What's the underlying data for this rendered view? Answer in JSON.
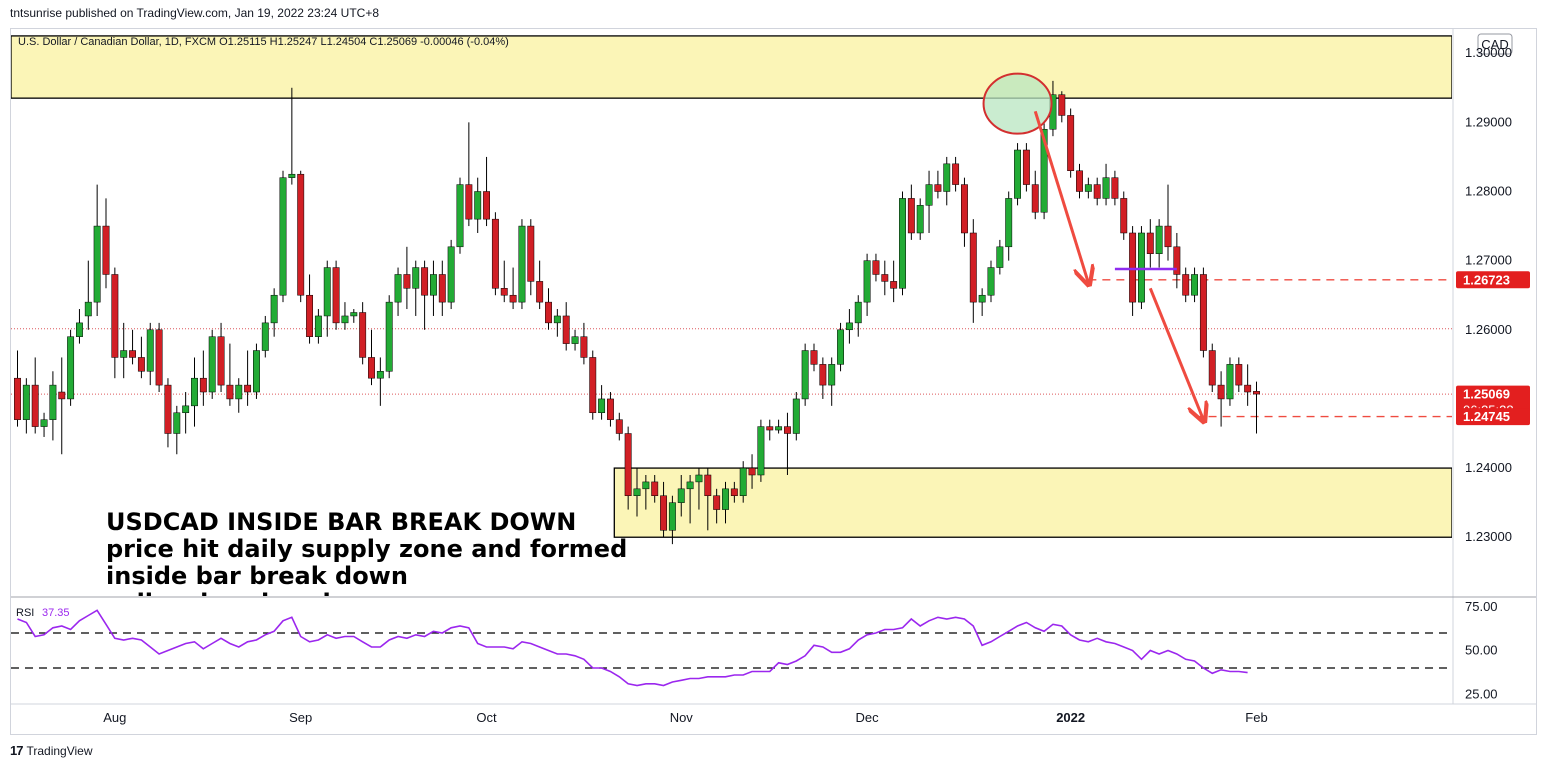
{
  "header": {
    "published_by": "tntsunrise published on TradingView.com, Jan 19, 2022 23:24 UTC+8"
  },
  "footer": {
    "brand": "TradingView",
    "logo_glyph": "17"
  },
  "colors": {
    "up": "#22ab35",
    "down": "#d11f25",
    "zone": "#fbf5b7",
    "arrow": "#ef4b40",
    "rsi": "#9b27ee",
    "price_tag": "#e31f1f",
    "circle_fill": "#b8e6c0",
    "circle_stroke": "#d32f2f",
    "inside_bar_line": "#8f2cf0"
  },
  "chart_data": [
    {
      "type": "candlestick",
      "symbol_line": "U.S. Dollar / Canadian Dollar, 1D, FXCM  O1.25115  H1.25247  L1.24504  C1.25069  -0.00046 (-0.04%)",
      "currency": "CAD",
      "y_ticks": [
        "1.30000",
        "1.29000",
        "1.28000",
        "1.27000",
        "1.26000",
        "1.25000",
        "1.24000",
        "1.23000"
      ],
      "y_tick_values": [
        1.3,
        1.29,
        1.28,
        1.27,
        1.26,
        1.25,
        1.24,
        1.23
      ],
      "ylim": [
        1.2215,
        1.3035
      ],
      "x_ticks": [
        {
          "label": "Aug",
          "bar": 11,
          "bold": false
        },
        {
          "label": "Sep",
          "bar": 32,
          "bold": false
        },
        {
          "label": "Oct",
          "bar": 53,
          "bold": false
        },
        {
          "label": "Nov",
          "bar": 75,
          "bold": false
        },
        {
          "label": "Dec",
          "bar": 96,
          "bold": false
        },
        {
          "label": "2022",
          "bar": 119,
          "bold": true
        },
        {
          "label": "Feb",
          "bar": 140,
          "bold": false
        }
      ],
      "price_labels": [
        {
          "value": 1.26723,
          "text": "1.26723"
        },
        {
          "value": 1.25069,
          "text": "1.25069",
          "countdown": "06:35:28"
        },
        {
          "value": 1.24745,
          "text": "1.24745"
        }
      ],
      "zones": [
        {
          "top": 1.3025,
          "bottom": 1.2935
        },
        {
          "top": 1.24,
          "bottom": 1.23
        }
      ],
      "dashed_levels": [
        1.26723,
        1.24745
      ],
      "dotted_levels": [
        1.26015,
        1.25069
      ],
      "inside_bar_line": {
        "bar_start": 124,
        "bar_end": 131,
        "value": 1.2688
      },
      "circle": {
        "bar": 113,
        "value": 1.2927
      },
      "arrows": [
        {
          "from_bar": 115,
          "from_value": 1.2916,
          "to_bar": 121,
          "to_value": 1.2668
        },
        {
          "from_bar": 128,
          "from_value": 1.266,
          "to_bar": 134,
          "to_value": 1.247
        }
      ],
      "annotation_lines": [
        "USDCAD INSIDE BAR BREAK DOWN",
        "price hit daily supply zone and formed",
        "inside bar break down",
        "sell a clear break"
      ],
      "candles": [
        [
          1.253,
          1.257,
          1.246,
          1.247
        ],
        [
          1.247,
          1.253,
          1.245,
          1.252
        ],
        [
          1.252,
          1.256,
          1.245,
          1.246
        ],
        [
          1.246,
          1.248,
          1.2445,
          1.247
        ],
        [
          1.247,
          1.254,
          1.244,
          1.252
        ],
        [
          1.251,
          1.256,
          1.242,
          1.25
        ],
        [
          1.25,
          1.26,
          1.249,
          1.259
        ],
        [
          1.259,
          1.263,
          1.258,
          1.261
        ],
        [
          1.262,
          1.27,
          1.26,
          1.264
        ],
        [
          1.264,
          1.281,
          1.262,
          1.275
        ],
        [
          1.275,
          1.279,
          1.266,
          1.268
        ],
        [
          1.268,
          1.269,
          1.253,
          1.256
        ],
        [
          1.256,
          1.261,
          1.253,
          1.257
        ],
        [
          1.257,
          1.26,
          1.255,
          1.256
        ],
        [
          1.256,
          1.259,
          1.253,
          1.254
        ],
        [
          1.254,
          1.261,
          1.252,
          1.26
        ],
        [
          1.26,
          1.261,
          1.251,
          1.252
        ],
        [
          1.252,
          1.253,
          1.243,
          1.245
        ],
        [
          1.245,
          1.249,
          1.242,
          1.248
        ],
        [
          1.248,
          1.251,
          1.245,
          1.249
        ],
        [
          1.249,
          1.256,
          1.246,
          1.253
        ],
        [
          1.253,
          1.257,
          1.249,
          1.251
        ],
        [
          1.251,
          1.26,
          1.25,
          1.259
        ],
        [
          1.259,
          1.261,
          1.251,
          1.252
        ],
        [
          1.252,
          1.258,
          1.249,
          1.25
        ],
        [
          1.25,
          1.253,
          1.248,
          1.252
        ],
        [
          1.252,
          1.257,
          1.249,
          1.251
        ],
        [
          1.251,
          1.258,
          1.25,
          1.257
        ],
        [
          1.257,
          1.262,
          1.256,
          1.261
        ],
        [
          1.261,
          1.266,
          1.259,
          1.265
        ],
        [
          1.265,
          1.283,
          1.264,
          1.282
        ],
        [
          1.282,
          1.295,
          1.281,
          1.2825
        ],
        [
          1.2825,
          1.283,
          1.264,
          1.265
        ],
        [
          1.265,
          1.268,
          1.258,
          1.259
        ],
        [
          1.259,
          1.263,
          1.258,
          1.262
        ],
        [
          1.262,
          1.27,
          1.259,
          1.269
        ],
        [
          1.269,
          1.27,
          1.26,
          1.261
        ],
        [
          1.261,
          1.264,
          1.26,
          1.262
        ],
        [
          1.262,
          1.263,
          1.261,
          1.2625
        ],
        [
          1.2625,
          1.264,
          1.255,
          1.256
        ],
        [
          1.256,
          1.26,
          1.252,
          1.253
        ],
        [
          1.253,
          1.256,
          1.249,
          1.254
        ],
        [
          1.254,
          1.265,
          1.253,
          1.264
        ],
        [
          1.264,
          1.269,
          1.262,
          1.268
        ],
        [
          1.268,
          1.272,
          1.263,
          1.266
        ],
        [
          1.266,
          1.27,
          1.262,
          1.269
        ],
        [
          1.269,
          1.27,
          1.26,
          1.265
        ],
        [
          1.265,
          1.27,
          1.262,
          1.268
        ],
        [
          1.268,
          1.27,
          1.262,
          1.264
        ],
        [
          1.264,
          1.273,
          1.263,
          1.272
        ],
        [
          1.272,
          1.282,
          1.271,
          1.281
        ],
        [
          1.281,
          1.29,
          1.275,
          1.276
        ],
        [
          1.276,
          1.282,
          1.274,
          1.28
        ],
        [
          1.28,
          1.285,
          1.275,
          1.276
        ],
        [
          1.276,
          1.277,
          1.265,
          1.266
        ],
        [
          1.266,
          1.27,
          1.264,
          1.265
        ],
        [
          1.265,
          1.269,
          1.263,
          1.264
        ],
        [
          1.264,
          1.276,
          1.263,
          1.275
        ],
        [
          1.275,
          1.276,
          1.265,
          1.267
        ],
        [
          1.267,
          1.27,
          1.263,
          1.264
        ],
        [
          1.264,
          1.266,
          1.26,
          1.261
        ],
        [
          1.261,
          1.263,
          1.259,
          1.262
        ],
        [
          1.262,
          1.264,
          1.257,
          1.258
        ],
        [
          1.258,
          1.26,
          1.257,
          1.259
        ],
        [
          1.259,
          1.261,
          1.255,
          1.256
        ],
        [
          1.256,
          1.257,
          1.247,
          1.248
        ],
        [
          1.248,
          1.252,
          1.247,
          1.25
        ],
        [
          1.25,
          1.251,
          1.246,
          1.247
        ],
        [
          1.247,
          1.248,
          1.244,
          1.245
        ],
        [
          1.245,
          1.246,
          1.234,
          1.236
        ],
        [
          1.236,
          1.24,
          1.233,
          1.237
        ],
        [
          1.237,
          1.239,
          1.234,
          1.238
        ],
        [
          1.238,
          1.239,
          1.235,
          1.236
        ],
        [
          1.236,
          1.238,
          1.23,
          1.231
        ],
        [
          1.231,
          1.236,
          1.229,
          1.235
        ],
        [
          1.235,
          1.239,
          1.233,
          1.237
        ],
        [
          1.237,
          1.239,
          1.232,
          1.238
        ],
        [
          1.238,
          1.24,
          1.234,
          1.239
        ],
        [
          1.239,
          1.24,
          1.231,
          1.236
        ],
        [
          1.236,
          1.237,
          1.232,
          1.234
        ],
        [
          1.234,
          1.238,
          1.232,
          1.237
        ],
        [
          1.237,
          1.238,
          1.235,
          1.236
        ],
        [
          1.236,
          1.241,
          1.235,
          1.24
        ],
        [
          1.24,
          1.242,
          1.237,
          1.239
        ],
        [
          1.239,
          1.247,
          1.238,
          1.246
        ],
        [
          1.246,
          1.247,
          1.244,
          1.2455
        ],
        [
          1.2455,
          1.247,
          1.245,
          1.246
        ],
        [
          1.246,
          1.248,
          1.239,
          1.245
        ],
        [
          1.245,
          1.251,
          1.244,
          1.25
        ],
        [
          1.25,
          1.258,
          1.249,
          1.257
        ],
        [
          1.257,
          1.258,
          1.254,
          1.255
        ],
        [
          1.255,
          1.256,
          1.25,
          1.252
        ],
        [
          1.252,
          1.256,
          1.249,
          1.255
        ],
        [
          1.255,
          1.261,
          1.254,
          1.26
        ],
        [
          1.26,
          1.263,
          1.258,
          1.261
        ],
        [
          1.261,
          1.265,
          1.259,
          1.264
        ],
        [
          1.264,
          1.271,
          1.262,
          1.27
        ],
        [
          1.27,
          1.271,
          1.267,
          1.268
        ],
        [
          1.268,
          1.27,
          1.265,
          1.267
        ],
        [
          1.267,
          1.27,
          1.264,
          1.266
        ],
        [
          1.266,
          1.28,
          1.265,
          1.279
        ],
        [
          1.279,
          1.281,
          1.273,
          1.274
        ],
        [
          1.274,
          1.279,
          1.273,
          1.278
        ],
        [
          1.278,
          1.283,
          1.274,
          1.281
        ],
        [
          1.281,
          1.283,
          1.279,
          1.28
        ],
        [
          1.28,
          1.285,
          1.278,
          1.284
        ],
        [
          1.284,
          1.285,
          1.28,
          1.281
        ],
        [
          1.281,
          1.282,
          1.272,
          1.274
        ],
        [
          1.274,
          1.276,
          1.261,
          1.264
        ],
        [
          1.264,
          1.266,
          1.262,
          1.265
        ],
        [
          1.265,
          1.27,
          1.264,
          1.269
        ],
        [
          1.269,
          1.273,
          1.268,
          1.272
        ],
        [
          1.272,
          1.28,
          1.27,
          1.279
        ],
        [
          1.279,
          1.287,
          1.278,
          1.286
        ],
        [
          1.286,
          1.287,
          1.28,
          1.281
        ],
        [
          1.281,
          1.283,
          1.276,
          1.277
        ],
        [
          1.277,
          1.29,
          1.276,
          1.289
        ],
        [
          1.289,
          1.296,
          1.288,
          1.294
        ],
        [
          1.294,
          1.2945,
          1.29,
          1.291
        ],
        [
          1.291,
          1.292,
          1.282,
          1.283
        ],
        [
          1.283,
          1.284,
          1.279,
          1.28
        ],
        [
          1.28,
          1.282,
          1.279,
          1.281
        ],
        [
          1.281,
          1.282,
          1.278,
          1.279
        ],
        [
          1.279,
          1.284,
          1.278,
          1.282
        ],
        [
          1.282,
          1.283,
          1.278,
          1.279
        ],
        [
          1.279,
          1.28,
          1.273,
          1.274
        ],
        [
          1.274,
          1.275,
          1.262,
          1.264
        ],
        [
          1.264,
          1.275,
          1.263,
          1.274
        ],
        [
          1.274,
          1.276,
          1.269,
          1.271
        ],
        [
          1.271,
          1.276,
          1.269,
          1.275
        ],
        [
          1.275,
          1.281,
          1.27,
          1.272
        ],
        [
          1.272,
          1.274,
          1.266,
          1.268
        ],
        [
          1.268,
          1.269,
          1.264,
          1.265
        ],
        [
          1.265,
          1.269,
          1.264,
          1.268
        ],
        [
          1.268,
          1.269,
          1.256,
          1.257
        ],
        [
          1.257,
          1.258,
          1.251,
          1.252
        ],
        [
          1.252,
          1.254,
          1.246,
          1.25
        ],
        [
          1.25,
          1.256,
          1.249,
          1.255
        ],
        [
          1.255,
          1.256,
          1.251,
          1.252
        ],
        [
          1.252,
          1.255,
          1.249,
          1.251
        ],
        [
          1.2511,
          1.2525,
          1.245,
          1.2507
        ]
      ]
    },
    {
      "type": "line",
      "name": "RSI",
      "label": "RSI",
      "value_text": "37.35",
      "y_ticks": [
        "75.00",
        "50.00",
        "25.00"
      ],
      "y_tick_values": [
        75,
        50,
        25
      ],
      "ylim": [
        20,
        80
      ],
      "levels": [
        60,
        40
      ],
      "values": [
        68,
        66,
        58,
        59,
        63,
        64,
        62,
        67,
        70,
        73,
        65,
        57,
        56,
        57,
        56,
        52,
        48,
        50,
        52,
        54,
        55,
        51,
        54,
        57,
        54,
        52,
        55,
        56,
        59,
        61,
        67,
        69,
        58,
        55,
        56,
        59,
        57,
        58,
        58,
        55,
        52,
        52,
        56,
        58,
        57,
        59,
        58,
        61,
        60,
        63,
        64,
        63,
        54,
        52,
        52,
        52,
        51,
        55,
        54,
        52,
        50,
        48,
        48,
        47,
        45,
        40,
        40,
        38,
        35,
        31,
        30,
        31,
        31,
        30,
        32,
        33,
        34,
        34,
        35,
        35,
        35,
        36,
        36,
        38,
        38,
        38,
        43,
        42,
        44,
        47,
        53,
        52,
        49,
        49,
        51,
        56,
        59,
        60,
        62,
        62,
        63,
        68,
        64,
        67,
        69,
        68,
        69,
        68,
        64,
        53,
        55,
        58,
        61,
        64,
        66,
        63,
        61,
        65,
        64,
        59,
        56,
        55,
        57,
        55,
        54,
        52,
        50,
        45,
        50,
        48,
        50,
        48,
        45,
        44,
        40,
        37,
        39,
        38,
        38,
        37.35
      ]
    }
  ]
}
